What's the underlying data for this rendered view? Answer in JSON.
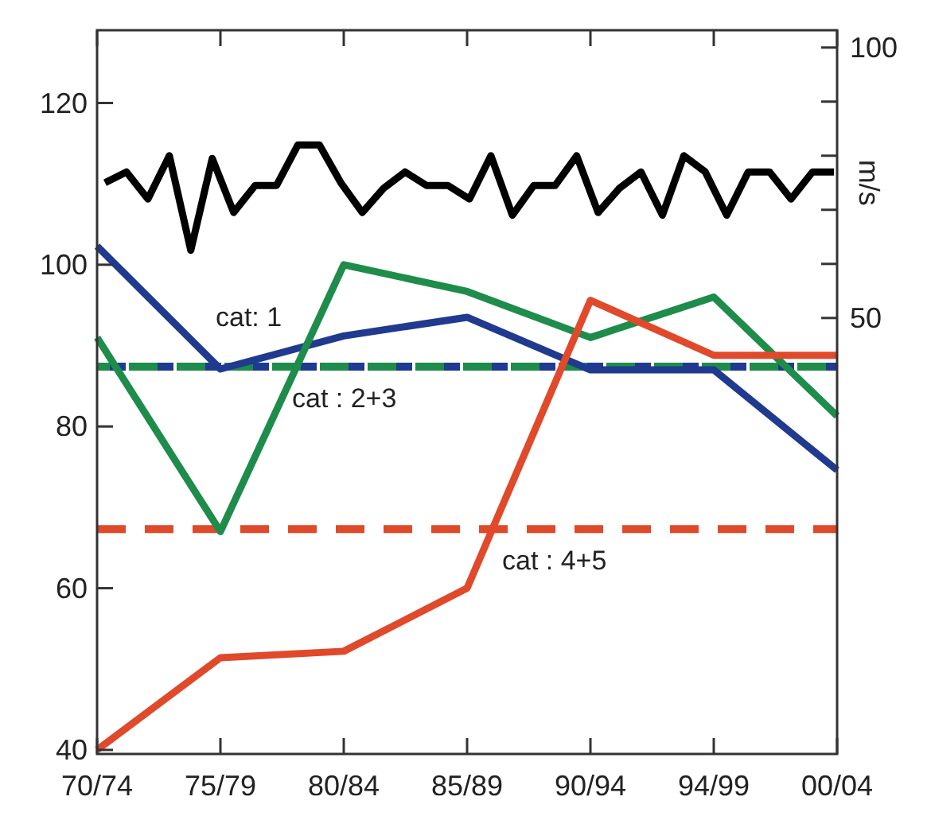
{
  "chart_data": [
    {
      "type": "line",
      "categories": [
        "70/74",
        "75/79",
        "80/84",
        "85/89",
        "90/94",
        "94/99",
        "00/04"
      ],
      "ylim": [
        39.5,
        129
      ],
      "yticks": [
        40,
        60,
        80,
        100,
        120
      ],
      "series": [
        {
          "name": "cat: 1",
          "color": "#1f3a8f",
          "values": [
            102.3,
            87.1,
            91.2,
            93.5,
            87,
            87,
            74.6
          ]
        },
        {
          "name": "cat : 2+3",
          "color": "#1e8c4a",
          "values": [
            91,
            67,
            100,
            96.7,
            91,
            96,
            81.3
          ]
        },
        {
          "name": "cat : 4+5",
          "color": "#e0492a",
          "values": [
            40,
            51.4,
            52.2,
            60,
            95.6,
            88.8,
            88.8
          ]
        }
      ],
      "ref_lines": [
        {
          "axis": "y",
          "value": 87.4,
          "color": "#1f3a8f",
          "line_style": "dashed"
        },
        {
          "axis": "y",
          "value": 87.4,
          "color": "#1e8c4a",
          "line_style": "dashed"
        },
        {
          "axis": "y",
          "value": 67.3,
          "color": "#e0492a",
          "line_style": "dashed"
        }
      ]
    },
    {
      "type": "line",
      "ylabel": "m/s",
      "categories": [
        null,
        null,
        null,
        null,
        null,
        null,
        null,
        null,
        null,
        null,
        null,
        null,
        null,
        null,
        null,
        null,
        null,
        null,
        null,
        null,
        null,
        null,
        null,
        null,
        null,
        null,
        null,
        null,
        null,
        null,
        null,
        null,
        null,
        null,
        null
      ],
      "ylim": [
        -30.6,
        103.2
      ],
      "yticks": [
        50,
        {
          "value": 60,
          "label": null
        },
        {
          "value": 70,
          "label": null
        },
        {
          "value": 80,
          "label": null
        },
        {
          "value": 90,
          "label": null
        },
        100
      ],
      "series": [
        {
          "color": "#000000",
          "values": [
            75,
            77,
            72,
            80,
            62.5,
            79.5,
            69.5,
            74.5,
            74.5,
            82,
            82,
            75,
            69.5,
            74,
            77,
            74.5,
            74.5,
            72,
            80,
            69,
            74.5,
            74.5,
            80,
            69.5,
            74,
            77,
            69,
            80,
            77,
            69,
            77,
            77,
            72,
            77,
            77
          ]
        }
      ]
    }
  ]
}
